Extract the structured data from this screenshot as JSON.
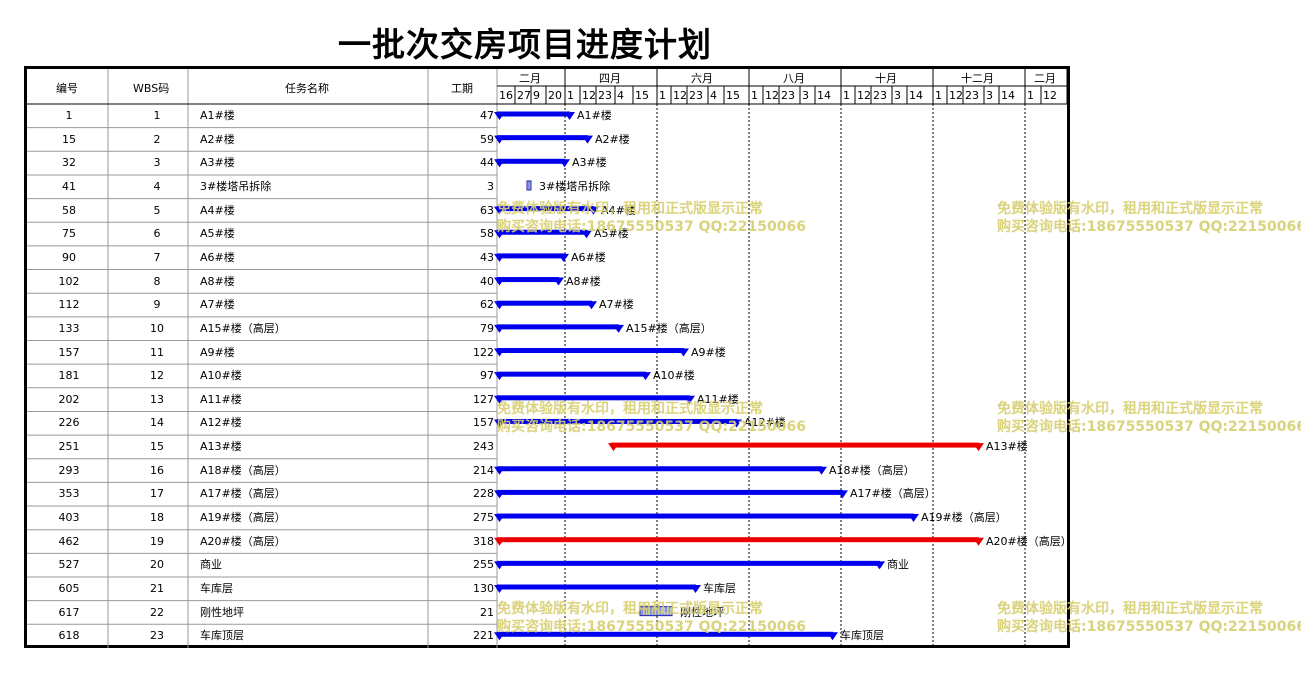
{
  "title": "一批次交房项目进度计划",
  "columns": {
    "id": "编号",
    "wbs": "WBS码",
    "name": "任务名称",
    "duration": "工期"
  },
  "timeline": {
    "months": [
      "二月",
      "四月",
      "六月",
      "八月",
      "十月",
      "十二月",
      "二月"
    ],
    "ticks": [
      "16",
      "27",
      "9",
      "20",
      "1",
      "12",
      "23",
      "4",
      "15",
      "1",
      "12",
      "23",
      "4",
      "15",
      "1",
      "12",
      "23",
      "3",
      "14",
      "1",
      "12",
      "23",
      "3",
      "14",
      "1",
      "12",
      "23",
      "3",
      "14",
      "1",
      "12"
    ]
  },
  "tasks": [
    {
      "id": "1",
      "wbs": "1",
      "name": "A1#楼",
      "duration": "47",
      "label": "A1#楼",
      "critical": false
    },
    {
      "id": "15",
      "wbs": "2",
      "name": "A2#楼",
      "duration": "59",
      "label": "A2#楼",
      "critical": false
    },
    {
      "id": "32",
      "wbs": "3",
      "name": "A3#楼",
      "duration": "44",
      "label": "A3#楼",
      "critical": false
    },
    {
      "id": "41",
      "wbs": "4",
      "name": "3#楼塔吊拆除",
      "duration": "3",
      "label": "3#楼塔吊拆除",
      "critical": false
    },
    {
      "id": "58",
      "wbs": "5",
      "name": "A4#楼",
      "duration": "63",
      "label": "A4#楼",
      "critical": false
    },
    {
      "id": "75",
      "wbs": "6",
      "name": "A5#楼",
      "duration": "58",
      "label": "A5#楼",
      "critical": false
    },
    {
      "id": "90",
      "wbs": "7",
      "name": "A6#楼",
      "duration": "43",
      "label": "A6#楼",
      "critical": false
    },
    {
      "id": "102",
      "wbs": "8",
      "name": "A8#楼",
      "duration": "40",
      "label": "A8#楼",
      "critical": false
    },
    {
      "id": "112",
      "wbs": "9",
      "name": "A7#楼",
      "duration": "62",
      "label": "A7#楼",
      "critical": false
    },
    {
      "id": "133",
      "wbs": "10",
      "name": "A15#楼（高层）",
      "duration": "79",
      "label": "A15#楼（高层）",
      "critical": false
    },
    {
      "id": "157",
      "wbs": "11",
      "name": "A9#楼",
      "duration": "122",
      "label": "A9#楼",
      "critical": false
    },
    {
      "id": "181",
      "wbs": "12",
      "name": "A10#楼",
      "duration": "97",
      "label": "A10#楼",
      "critical": false
    },
    {
      "id": "202",
      "wbs": "13",
      "name": "A11#楼",
      "duration": "127",
      "label": "A11#楼",
      "critical": false
    },
    {
      "id": "226",
      "wbs": "14",
      "name": "A12#楼",
      "duration": "157",
      "label": "A12#楼",
      "critical": false
    },
    {
      "id": "251",
      "wbs": "15",
      "name": "A13#楼",
      "duration": "243",
      "label": "A13#楼",
      "critical": true
    },
    {
      "id": "293",
      "wbs": "16",
      "name": "A18#楼（高层）",
      "duration": "214",
      "label": "A18#楼（高层）",
      "critical": false
    },
    {
      "id": "353",
      "wbs": "17",
      "name": "A17#楼（高层）",
      "duration": "228",
      "label": "A17#楼（高层）",
      "critical": false
    },
    {
      "id": "403",
      "wbs": "18",
      "name": "A19#楼（高层）",
      "duration": "275",
      "label": "A19#楼（高层）",
      "critical": false
    },
    {
      "id": "462",
      "wbs": "19",
      "name": "A20#楼（高层）",
      "duration": "318",
      "label": "A20#楼（高层）",
      "critical": true
    },
    {
      "id": "527",
      "wbs": "20",
      "name": "商业",
      "duration": "255",
      "label": "商业",
      "critical": false
    },
    {
      "id": "605",
      "wbs": "21",
      "name": "车库层",
      "duration": "130",
      "label": "车库层",
      "critical": false
    },
    {
      "id": "617",
      "wbs": "22",
      "name": "刚性地坪",
      "duration": "21",
      "label": "刚性地坪",
      "critical": false
    },
    {
      "id": "618",
      "wbs": "23",
      "name": "车库顶层",
      "duration": "221",
      "label": "车库顶层",
      "critical": false
    }
  ],
  "watermark": {
    "line1": "免费体验版有水印，租用和正式版显示正常",
    "line2": "购买咨询电话:18675550537 QQ:22150066"
  },
  "colors": {
    "bar": "#0000ee",
    "critical": "#ee0000",
    "grid": "#9a9a9a",
    "watermark": "#d6cf6e"
  }
}
